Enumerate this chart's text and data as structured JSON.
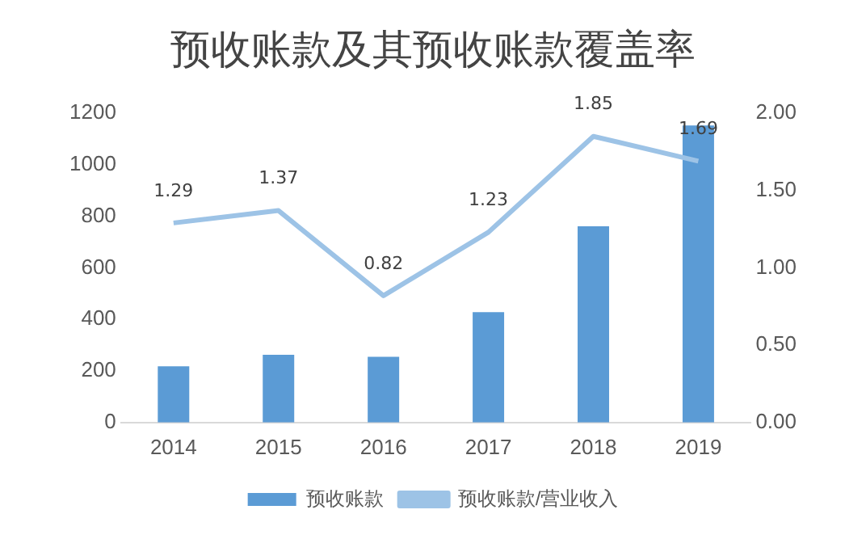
{
  "chart_data": {
    "type": "bar",
    "title": "预收账款及其预收账款覆盖率",
    "categories": [
      "2014",
      "2015",
      "2016",
      "2017",
      "2018",
      "2019"
    ],
    "series": [
      {
        "name": "预收账款",
        "color": "#5b9bd5",
        "values": [
          218,
          263,
          255,
          428,
          761,
          1152
        ]
      },
      {
        "name": "预收账款/营业收入",
        "type": "line",
        "axis": "y2",
        "color": "#9dc3e6",
        "values": [
          1.29,
          1.37,
          0.82,
          1.23,
          1.85,
          1.69
        ],
        "value_labels": [
          "1.29",
          "1.37",
          "0.82",
          "1.23",
          "1.85",
          "1.69"
        ]
      }
    ],
    "ylim": [
      0,
      1200
    ],
    "yticks": [
      0,
      200,
      400,
      600,
      800,
      1000,
      1200
    ],
    "y2lim": [
      0,
      2
    ],
    "y2ticks": [
      {
        "value": 0,
        "label": "0.00"
      },
      {
        "value": 0.5,
        "label": "0.50"
      },
      {
        "value": 1,
        "label": "1.00"
      },
      {
        "value": 1.5,
        "label": "1.50"
      },
      {
        "value": 2,
        "label": "2.00"
      }
    ],
    "grid": false,
    "legend": "bottom",
    "marker": "none"
  }
}
